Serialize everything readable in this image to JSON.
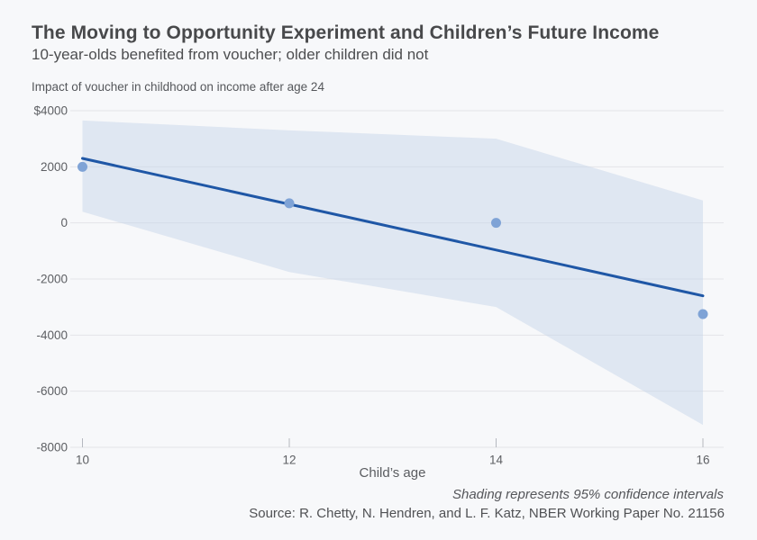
{
  "header": {
    "title": "The Moving to Opportunity Experiment and Children’s Future Income",
    "subtitle": "10-year-olds benefited from voucher; older children did not"
  },
  "footer": {
    "note": "Shading represents 95% confidence intervals",
    "source": "Source: R. Chetty, N. Hendren, and L. F. Katz, NBER Working Paper No. 21156"
  },
  "chart_data": {
    "type": "scatter",
    "axis_title": "Impact of voucher in childhood on income after age 24",
    "xlabel": "Child’s age",
    "x": [
      10,
      12,
      14,
      16
    ],
    "points": [
      2000,
      700,
      0,
      -3250
    ],
    "trend_line": {
      "x": [
        10,
        16
      ],
      "y": [
        2300,
        -2600
      ]
    },
    "confidence_band": {
      "upper": [
        3650,
        3300,
        3000,
        800
      ],
      "lower": [
        400,
        -1750,
        -3000,
        -7200
      ]
    },
    "x_ticks": [
      "10",
      "12",
      "14",
      "16"
    ],
    "y_ticks": [
      {
        "label": "$4000",
        "value": 4000
      },
      {
        "label": "2000",
        "value": 2000
      },
      {
        "label": "0",
        "value": 0
      },
      {
        "label": "-2000",
        "value": -2000
      },
      {
        "label": "-4000",
        "value": -4000
      },
      {
        "label": "-6000",
        "value": -6000
      },
      {
        "label": "-8000",
        "value": -8000
      }
    ],
    "xlim": [
      10,
      16
    ],
    "ylim": [
      -8000,
      4000
    ],
    "grid": true,
    "legend": "none",
    "colors": {
      "background": "#f7f8fa",
      "band": "#c7d6ea",
      "line": "#1f57a6",
      "point": "#7fa3d6",
      "grid": "#e3e4e8",
      "tick_mark": "#b5b8bf",
      "tick_text": "#5d5f63"
    }
  }
}
